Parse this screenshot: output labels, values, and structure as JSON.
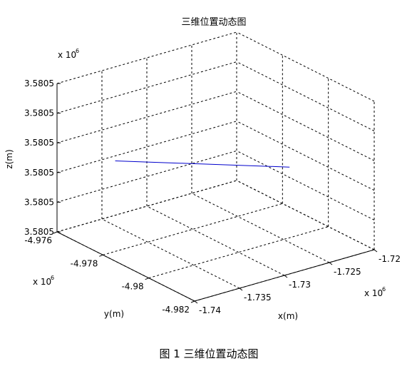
{
  "chart_data": {
    "type": "line",
    "title": "三维位置动态图",
    "xlabel": "x(m)",
    "ylabel": "y(m)",
    "zlabel": "z(m)",
    "x_exponent": "x 10",
    "x_exponent_power": "6",
    "y_exponent": "x 10",
    "y_exponent_power": "6",
    "z_exponent": "x 10",
    "z_exponent_power": "6",
    "x_ticks": [
      "-1.74",
      "-1.735",
      "-1.73",
      "-1.725",
      "-1.72"
    ],
    "y_ticks": [
      "-4.982",
      "-4.98",
      "-4.978",
      "-4.976"
    ],
    "z_ticks": [
      "3.5805",
      "3.5805",
      "3.5805",
      "3.5805",
      "3.5805",
      "3.5805"
    ],
    "xlim": [
      -1.74,
      -1.72
    ],
    "ylim": [
      -4.982,
      -4.976
    ],
    "zlim": [
      0,
      5
    ],
    "grid": true,
    "series": [
      {
        "color": "#0000cc",
        "x": [
          -1.7371,
          -1.7233
        ],
        "y": [
          -4.9774,
          -4.9796
        ],
        "z": [
          2.685,
          2.136
        ]
      }
    ]
  },
  "caption": "图 1  三维位置动态图"
}
